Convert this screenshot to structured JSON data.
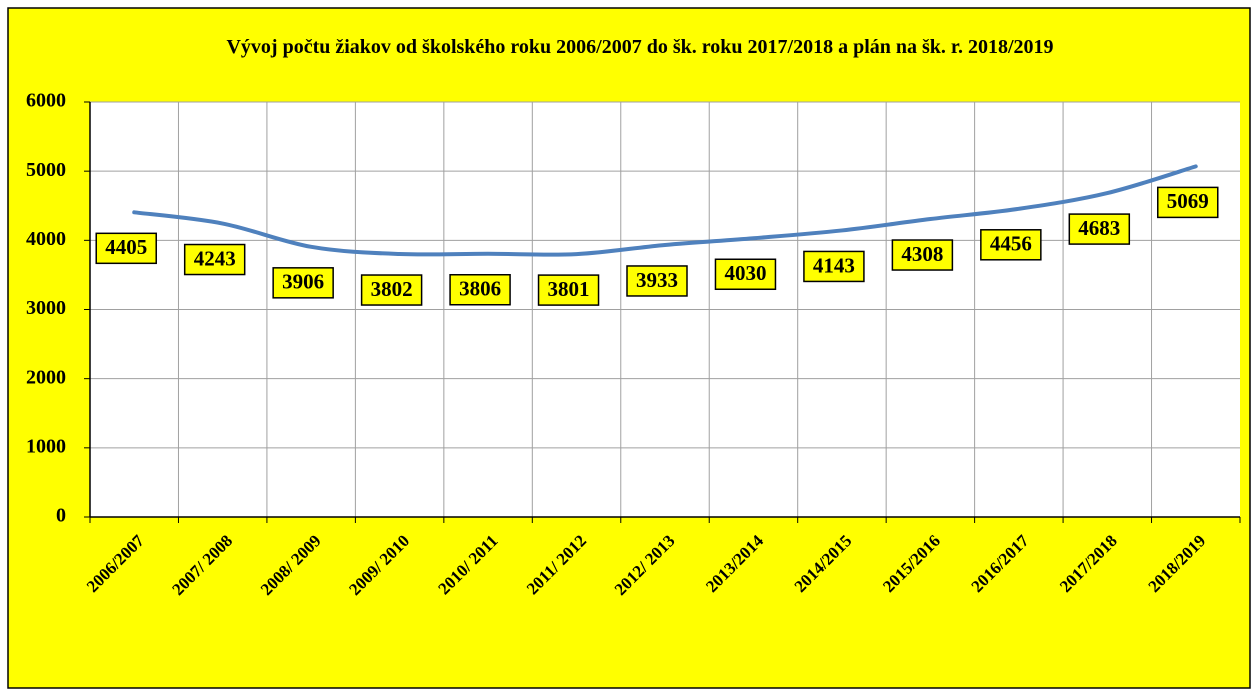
{
  "chart_data": {
    "type": "line",
    "title": "Vývoj počtu žiakov od školského roku 2006/2007 do šk. roku 2017/2018 a plán  na šk. r.  2018/2019",
    "categories": [
      "2006/2007",
      "2007/ 2008",
      "2008/ 2009",
      "2009/ 2010",
      "2010/ 2011",
      "2011/ 2012",
      "2012/ 2013",
      "2013/2014",
      "2014/2015",
      "2015/2016",
      "2016/2017",
      "2017/2018",
      "2018/2019"
    ],
    "values": [
      4405,
      4243,
      3906,
      3802,
      3806,
      3801,
      3933,
      4030,
      4143,
      4308,
      4456,
      4683,
      5069
    ],
    "color": "#4f81bd",
    "ylim": [
      0,
      6000
    ],
    "yticks": [
      0,
      1000,
      2000,
      3000,
      4000,
      5000,
      6000
    ],
    "grid": true
  }
}
